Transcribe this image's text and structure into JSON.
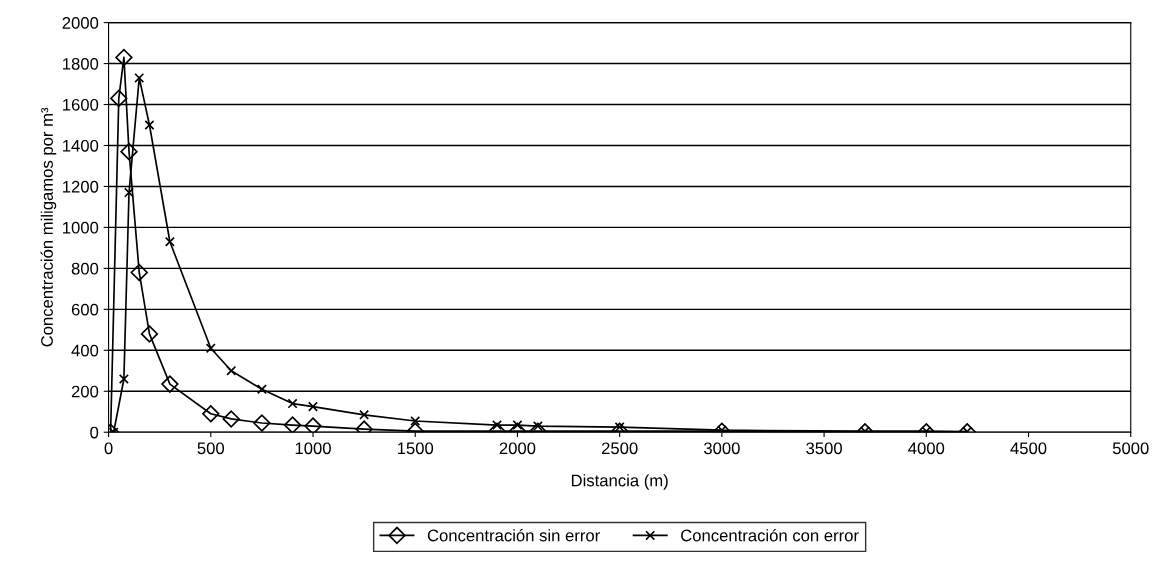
{
  "chart_data": {
    "type": "line",
    "xlabel": "Distancia (m)",
    "ylabel": "Concentración miligamos por m³",
    "xlim": [
      0,
      5000
    ],
    "xticks": [
      0,
      500,
      1000,
      1500,
      2000,
      2500,
      3000,
      3500,
      4000,
      4500,
      5000
    ],
    "ylim": [
      0,
      2000
    ],
    "yticks": [
      0,
      200,
      400,
      600,
      800,
      1000,
      1200,
      1400,
      1600,
      1800,
      2000
    ],
    "grid": "y",
    "legend": "bottom",
    "series": [
      {
        "name": "Concentración sin error",
        "color": "#000000",
        "marker": "diamond",
        "x": [
          10,
          50,
          75,
          100,
          150,
          200,
          300,
          500,
          600,
          750,
          900,
          1000,
          1250,
          1500,
          1900,
          2000,
          2100,
          2500,
          3000,
          3700,
          4000,
          4200
        ],
        "values": [
          0,
          1630,
          1830,
          1370,
          780,
          480,
          235,
          90,
          65,
          45,
          35,
          30,
          15,
          5,
          5,
          5,
          5,
          5,
          5,
          2,
          2,
          2
        ]
      },
      {
        "name": "Concentración con error",
        "color": "#000000",
        "marker": "cross",
        "x": [
          25,
          75,
          100,
          150,
          200,
          300,
          500,
          600,
          750,
          900,
          1000,
          1250,
          1500,
          1900,
          2000,
          2100,
          2500,
          3000,
          3700,
          4000,
          4200
        ],
        "values": [
          0,
          260,
          1170,
          1730,
          1500,
          930,
          410,
          300,
          210,
          140,
          125,
          85,
          55,
          35,
          35,
          30,
          25,
          10,
          5,
          5,
          3
        ]
      }
    ]
  }
}
